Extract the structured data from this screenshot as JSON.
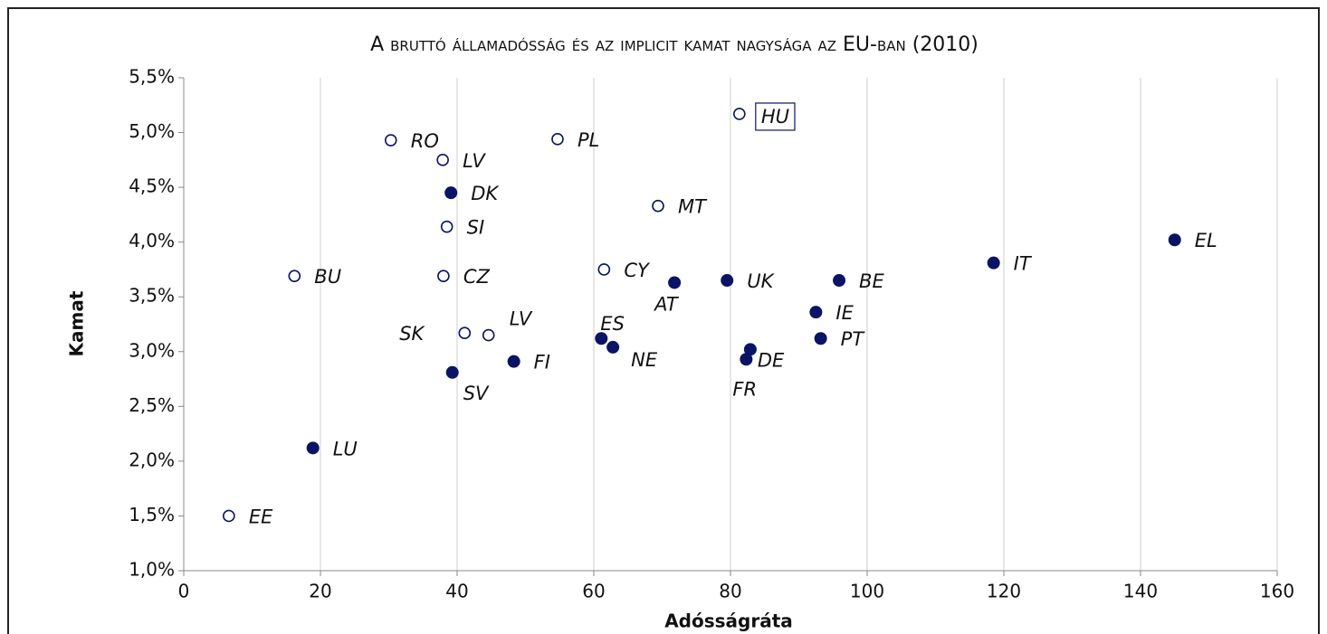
{
  "chart_data": {
    "type": "scatter",
    "title": "A bruttó államadósság és az implicit kamat nagysága az EU-ban (2010)",
    "x_label": "Adósságráta",
    "y_label": "Kamat",
    "xlim": [
      0,
      160
    ],
    "xticks": [
      0,
      20,
      40,
      60,
      80,
      100,
      120,
      140,
      160
    ],
    "ylim": [
      1.0,
      5.5
    ],
    "yticks": [
      {
        "value": 1.0,
        "label": "1,0%"
      },
      {
        "value": 1.5,
        "label": "1,5%"
      },
      {
        "value": 2.0,
        "label": "2,0%"
      },
      {
        "value": 2.5,
        "label": "2,5%"
      },
      {
        "value": 3.0,
        "label": "3,0%"
      },
      {
        "value": 3.5,
        "label": "3,5%"
      },
      {
        "value": 4.0,
        "label": "4,0%"
      },
      {
        "value": 4.5,
        "label": "4,5%"
      },
      {
        "value": 5.0,
        "label": "5,0%"
      },
      {
        "value": 5.5,
        "label": "5,5%"
      }
    ],
    "grid": true,
    "series": [
      {
        "color": "#0a1464",
        "filled": false,
        "labels": [
          "EE",
          "BU",
          "RO",
          "LV",
          "SI",
          "CZ",
          "SK",
          "LV",
          "PL",
          "CY",
          "MT",
          "HU"
        ],
        "x": [
          6.6,
          16.2,
          30.3,
          37.9,
          38.5,
          38.0,
          41.1,
          44.6,
          54.7,
          61.5,
          69.4,
          81.3
        ],
        "values": [
          1.5,
          3.69,
          4.93,
          4.75,
          4.14,
          3.69,
          3.17,
          3.15,
          4.94,
          3.75,
          4.33,
          5.17
        ]
      },
      {
        "color": "#0a1464",
        "filled": true,
        "labels": [
          "LU",
          "DK",
          "SV",
          "FI",
          "ES",
          "NE",
          "AT",
          "UK",
          "FR",
          "DE",
          "IE",
          "PT",
          "BE",
          "IT",
          "EL"
        ],
        "x": [
          18.9,
          39.1,
          39.3,
          48.3,
          61.1,
          62.8,
          71.8,
          79.5,
          82.3,
          82.9,
          92.5,
          93.2,
          95.9,
          118.5,
          145.0
        ],
        "values": [
          2.12,
          4.45,
          2.81,
          2.91,
          3.12,
          3.04,
          3.63,
          3.65,
          2.93,
          3.02,
          3.36,
          3.12,
          3.65,
          3.81,
          4.02
        ]
      }
    ]
  }
}
